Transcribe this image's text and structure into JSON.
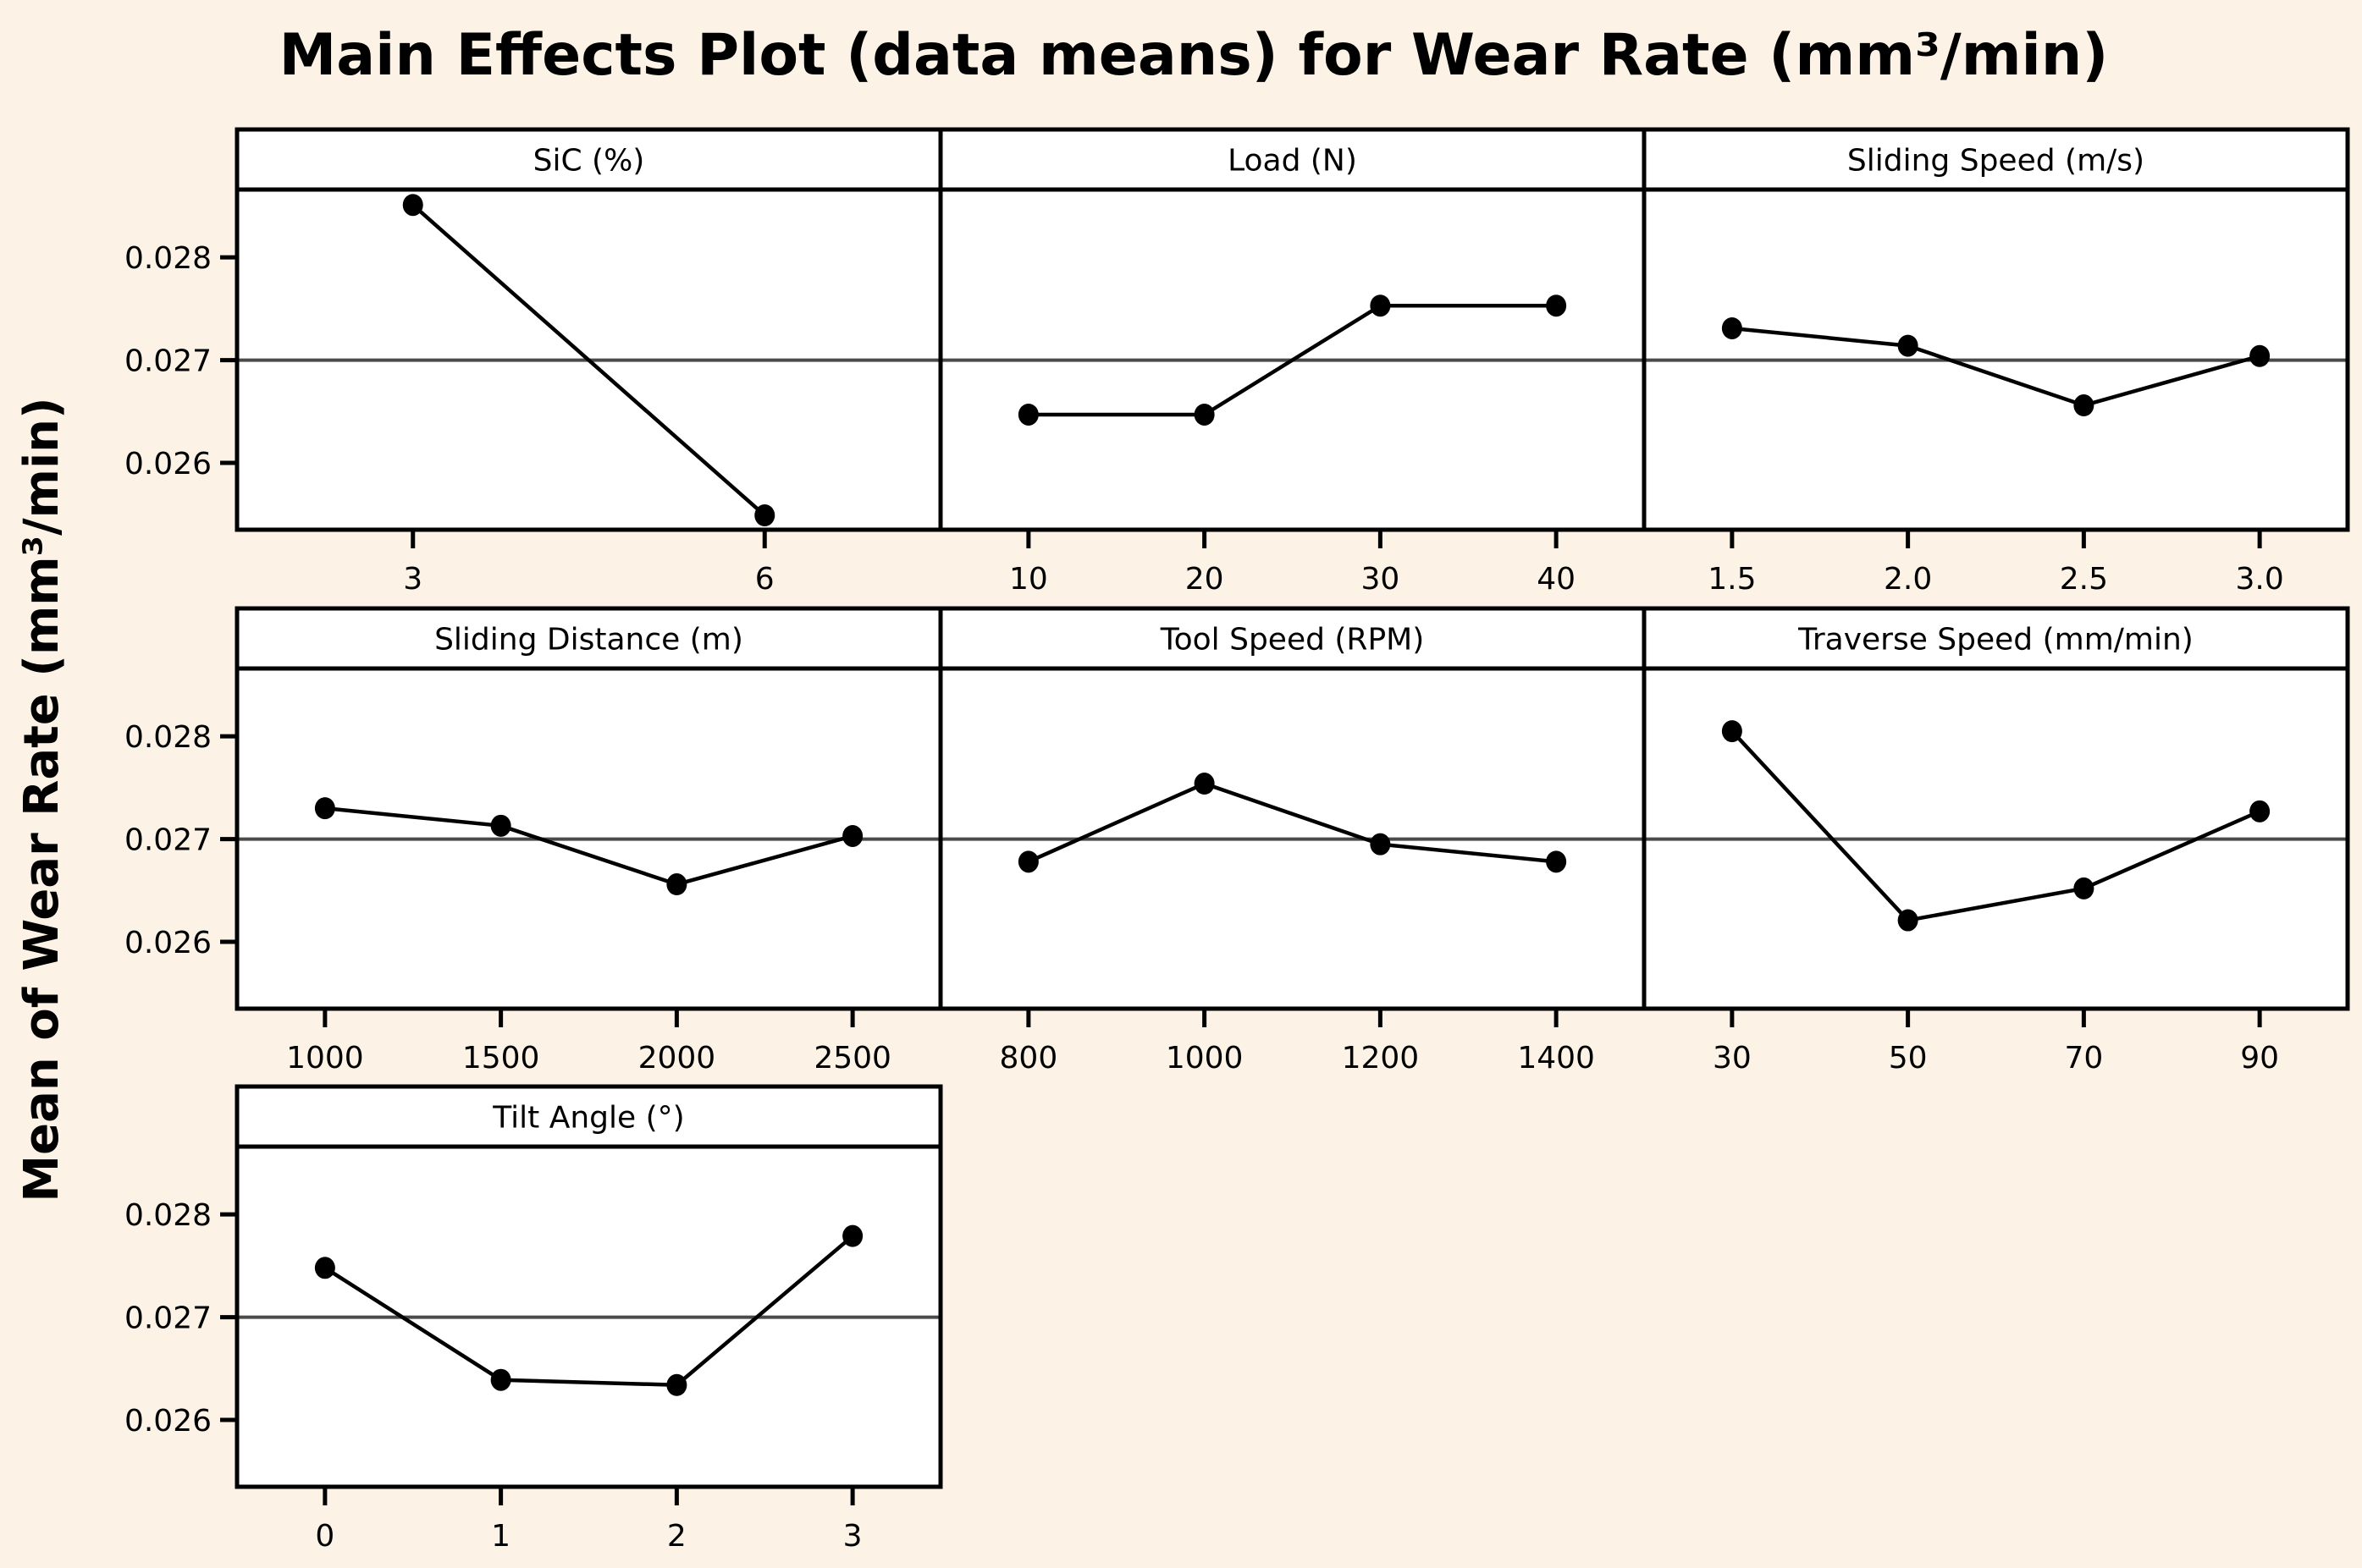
{
  "chart_data": {
    "type": "line",
    "title": "Main Effects Plot (data means) for Wear Rate (mm³/min)",
    "ylabel": "Mean of Wear Rate (mm³/min)",
    "xlabel": "",
    "ylim": [
      0.02535,
      0.02866
    ],
    "yticks": [
      0.026,
      0.027,
      0.028
    ],
    "ytick_labels": [
      "0.026",
      "0.027",
      "0.028"
    ],
    "reference_line": 0.027,
    "grid": false,
    "legend": "none",
    "layout": "3x3 panel grid, 7 panels",
    "panels": [
      {
        "name": "SiC (%)",
        "categories": [
          "3",
          "6"
        ],
        "values": [
          0.02851,
          0.02549
        ]
      },
      {
        "name": "Load (N)",
        "categories": [
          "10",
          "20",
          "30",
          "40"
        ],
        "values": [
          0.02647,
          0.02647,
          0.02753,
          0.02753
        ]
      },
      {
        "name": "Sliding Speed (m/s)",
        "categories": [
          "1.5",
          "2.0",
          "2.5",
          "3.0"
        ],
        "values": [
          0.02731,
          0.02714,
          0.02656,
          0.02704
        ]
      },
      {
        "name": "Sliding Distance (m)",
        "categories": [
          "1000",
          "1500",
          "2000",
          "2500"
        ],
        "values": [
          0.0273,
          0.02713,
          0.02656,
          0.02703
        ]
      },
      {
        "name": "Tool Speed (RPM)",
        "categories": [
          "800",
          "1000",
          "1200",
          "1400"
        ],
        "values": [
          0.02678,
          0.02754,
          0.02695,
          0.02678
        ]
      },
      {
        "name": "Traverse Speed (mm/min)",
        "categories": [
          "30",
          "50",
          "70",
          "90"
        ],
        "values": [
          0.02805,
          0.02621,
          0.02652,
          0.02727
        ]
      },
      {
        "name": "Tilt Angle (°)",
        "categories": [
          "0",
          "1",
          "2",
          "3"
        ],
        "values": [
          0.02748,
          0.02639,
          0.02634,
          0.02779
        ]
      }
    ]
  },
  "colors": {
    "background": "#FCF3E6",
    "panel": "#FFFFFF",
    "line": "#000000",
    "reference_line": "#4A4A4A"
  }
}
